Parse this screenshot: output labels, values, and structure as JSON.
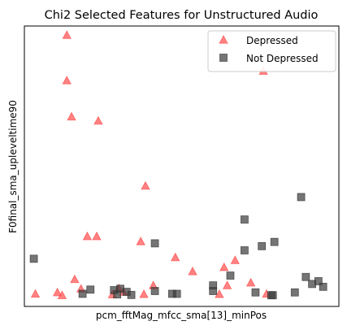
{
  "chart_data": {
    "type": "scatter",
    "title": "Chi2 Selected Features for Unstructured Audio",
    "xlabel": "pcm_fftMag_mfcc_sma[13]_minPos",
    "ylabel": "F0final_sma_upleveltime90",
    "xticks_visible": false,
    "yticks_visible": false,
    "xlim": [
      0,
      100
    ],
    "ylim": [
      0,
      100
    ],
    "grid": false,
    "legend_position": "upper right",
    "series": [
      {
        "name": "Depressed",
        "marker": "triangle",
        "color": "#ff4d4d",
        "alpha": 0.7,
        "points": [
          [
            13.5,
            96.8
          ],
          [
            13.5,
            80.6
          ],
          [
            15.0,
            67.7
          ],
          [
            23.5,
            66.2
          ],
          [
            38.5,
            43.0
          ],
          [
            20.0,
            25.0
          ],
          [
            23.0,
            25.0
          ],
          [
            37.0,
            23.2
          ],
          [
            48.0,
            17.5
          ],
          [
            53.5,
            12.5
          ],
          [
            63.5,
            14.0
          ],
          [
            67.0,
            16.5
          ],
          [
            76.0,
            84.0
          ],
          [
            16.0,
            9.7
          ],
          [
            30.0,
            6.5
          ],
          [
            41.0,
            7.5
          ],
          [
            3.5,
            4.5
          ],
          [
            10.5,
            5.0
          ],
          [
            12.0,
            4.0
          ],
          [
            18.0,
            6.3
          ],
          [
            28.0,
            4.3
          ],
          [
            31.5,
            5.2
          ],
          [
            38.0,
            4.4
          ],
          [
            62.0,
            4.4
          ],
          [
            64.5,
            7.5
          ],
          [
            72.0,
            8.5
          ],
          [
            77.0,
            4.5
          ]
        ]
      },
      {
        "name": "Not Depressed",
        "marker": "square",
        "color": "#3a3a3a",
        "alpha": 0.7,
        "points": [
          [
            3.0,
            17.0
          ],
          [
            18.5,
            4.5
          ],
          [
            21.0,
            6.0
          ],
          [
            28.5,
            5.8
          ],
          [
            29.5,
            4.3
          ],
          [
            30.5,
            6.3
          ],
          [
            32.5,
            5.2
          ],
          [
            34.0,
            4.1
          ],
          [
            41.5,
            5.5
          ],
          [
            41.5,
            22.5
          ],
          [
            47.0,
            4.5
          ],
          [
            48.5,
            4.5
          ],
          [
            60.0,
            7.5
          ],
          [
            60.0,
            5.5
          ],
          [
            65.5,
            11.0
          ],
          [
            70.0,
            20.0
          ],
          [
            70.0,
            31.0
          ],
          [
            73.5,
            5.0
          ],
          [
            75.5,
            21.5
          ],
          [
            78.5,
            4.0
          ],
          [
            79.0,
            4.0
          ],
          [
            79.5,
            23.0
          ],
          [
            86.0,
            5.0
          ],
          [
            88.0,
            39.0
          ],
          [
            89.5,
            10.5
          ],
          [
            91.5,
            8.0
          ],
          [
            93.5,
            9.0
          ],
          [
            95.0,
            7.0
          ]
        ]
      }
    ]
  }
}
